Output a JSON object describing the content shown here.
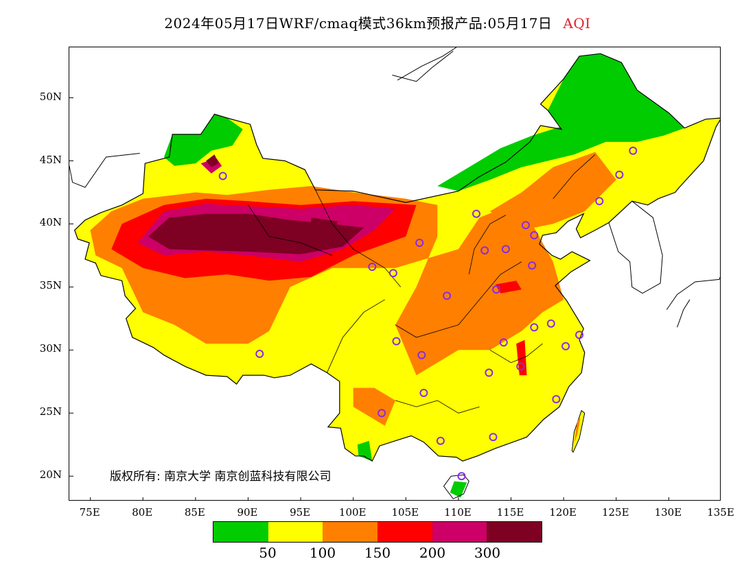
{
  "title": {
    "text": "2024年05月17日WRF/cmaq模式36km预报产品:05月17日",
    "variable": "AQI"
  },
  "map": {
    "lon_range": [
      73,
      135
    ],
    "lat_range": [
      18,
      54
    ],
    "lat_ticks": [
      {
        "value": 20,
        "label": "20N"
      },
      {
        "value": 25,
        "label": "25N"
      },
      {
        "value": 30,
        "label": "30N"
      },
      {
        "value": 35,
        "label": "35N"
      },
      {
        "value": 40,
        "label": "40N"
      },
      {
        "value": 45,
        "label": "45N"
      },
      {
        "value": 50,
        "label": "50N"
      }
    ],
    "lon_ticks": [
      {
        "value": 75,
        "label": "75E"
      },
      {
        "value": 80,
        "label": "80E"
      },
      {
        "value": 85,
        "label": "85E"
      },
      {
        "value": 90,
        "label": "90E"
      },
      {
        "value": 95,
        "label": "95E"
      },
      {
        "value": 100,
        "label": "100E"
      },
      {
        "value": 105,
        "label": "105E"
      },
      {
        "value": 110,
        "label": "110E"
      },
      {
        "value": 115,
        "label": "115E"
      },
      {
        "value": 120,
        "label": "120E"
      },
      {
        "value": 125,
        "label": "125E"
      },
      {
        "value": 130,
        "label": "130E"
      },
      {
        "value": 135,
        "label": "135E"
      }
    ],
    "stations": [
      [
        87.6,
        43.8
      ],
      [
        91.1,
        29.7
      ],
      [
        101.8,
        36.6
      ],
      [
        103.8,
        36.1
      ],
      [
        106.3,
        38.5
      ],
      [
        104.1,
        30.7
      ],
      [
        106.5,
        29.6
      ],
      [
        106.7,
        26.6
      ],
      [
        102.7,
        25.0
      ],
      [
        108.3,
        22.8
      ],
      [
        110.3,
        20.0
      ],
      [
        113.3,
        23.1
      ],
      [
        119.3,
        26.1
      ],
      [
        112.9,
        28.2
      ],
      [
        115.9,
        28.7
      ],
      [
        114.3,
        30.6
      ],
      [
        117.2,
        31.8
      ],
      [
        118.8,
        32.1
      ],
      [
        120.2,
        30.3
      ],
      [
        121.5,
        31.2
      ],
      [
        113.6,
        34.8
      ],
      [
        108.9,
        34.3
      ],
      [
        112.5,
        37.9
      ],
      [
        114.5,
        38.0
      ],
      [
        117.0,
        36.7
      ],
      [
        117.2,
        39.1
      ],
      [
        116.4,
        39.9
      ],
      [
        111.7,
        40.8
      ],
      [
        123.4,
        41.8
      ],
      [
        125.3,
        43.9
      ],
      [
        126.6,
        45.8
      ]
    ]
  },
  "legend": {
    "colors": [
      "#00cc00",
      "#ffff00",
      "#ff7f00",
      "#ff0000",
      "#cc0066",
      "#7e0023"
    ],
    "breaks": [
      {
        "value": 50,
        "label": "50"
      },
      {
        "value": 100,
        "label": "100"
      },
      {
        "value": 150,
        "label": "150"
      },
      {
        "value": 200,
        "label": "200"
      },
      {
        "value": 300,
        "label": "300"
      }
    ]
  },
  "copyright": "版权所有: 南京大学 南京创蓝科技有限公司"
}
